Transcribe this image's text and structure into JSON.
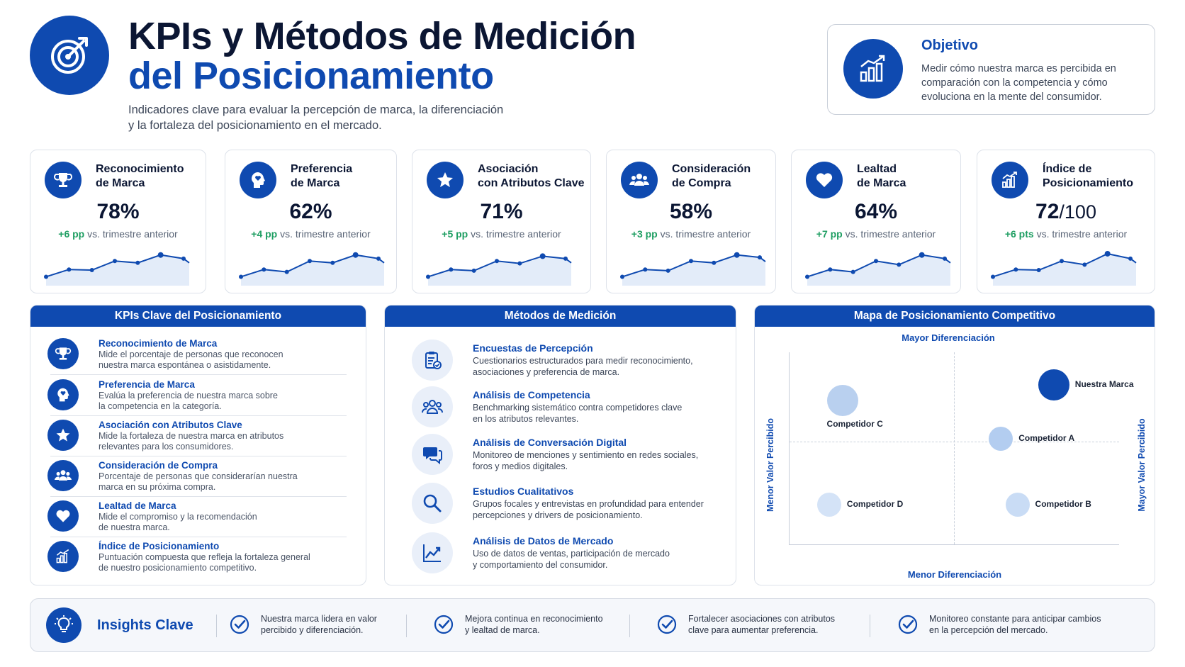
{
  "header": {
    "title_line1": "KPIs y Métodos de Medición",
    "title_line2": "del Posicionamiento",
    "subtitle_line1": "Indicadores clave para evaluar la percepción de marca, la diferenciación",
    "subtitle_line2": "y la fortaleza del posicionamiento en el mercado.",
    "icon": "target-icon"
  },
  "objective": {
    "title": "Objetivo",
    "text": "Medir cómo nuestra marca es percibida en comparación con la competencia y cómo evoluciona en la mente del consumidor.",
    "icon": "bar-growth-icon"
  },
  "kpi_cards": [
    {
      "title1": "Reconocimiento",
      "title2": "de Marca",
      "value": "78%",
      "suffix": "",
      "delta_pos": "+6 pp",
      "delta_rest": " vs. trimestre anterior",
      "icon": "trophy-icon",
      "trend": [
        40,
        52,
        51,
        66,
        63,
        76,
        70
      ]
    },
    {
      "title1": "Preferencia",
      "title2": "de Marca",
      "value": "62%",
      "suffix": "",
      "delta_pos": "+4 pp",
      "delta_rest": " vs. trimestre anterior",
      "icon": "head-heart-icon",
      "trend": [
        40,
        52,
        48,
        66,
        63,
        76,
        70
      ]
    },
    {
      "title1": "Asociación",
      "title2": "con Atributos Clave",
      "value": "71%",
      "suffix": "",
      "delta_pos": "+5 pp",
      "delta_rest": " vs. trimestre anterior",
      "icon": "star-icon",
      "trend": [
        40,
        52,
        50,
        66,
        62,
        74,
        70
      ]
    },
    {
      "title1": "Consideración",
      "title2": "de Compra",
      "value": "58%",
      "suffix": "",
      "delta_pos": "+3 pp",
      "delta_rest": " vs. trimestre anterior",
      "icon": "people-icon",
      "trend": [
        40,
        52,
        50,
        66,
        63,
        76,
        72
      ]
    },
    {
      "title1": "Lealtad",
      "title2": "de Marca",
      "value": "64%",
      "suffix": "",
      "delta_pos": "+7 pp",
      "delta_rest": " vs. trimestre anterior",
      "icon": "heart-icon",
      "trend": [
        40,
        52,
        48,
        66,
        60,
        76,
        70
      ]
    },
    {
      "title1": "Índice de",
      "title2": "Posicionamiento",
      "value": "72",
      "suffix": "/100",
      "delta_pos": "+6 pts",
      "delta_rest": " vs. trimestre anterior",
      "icon": "chart-growth-icon",
      "trend": [
        40,
        52,
        51,
        66,
        60,
        78,
        70
      ]
    }
  ],
  "kpis_panel": {
    "title": "KPIs Clave del Posicionamiento",
    "items": [
      {
        "title": "Reconocimiento de Marca",
        "desc1": "Mide el porcentaje de personas que reconocen",
        "desc2": "nuestra marca espontánea o asistidamente.",
        "icon": "trophy-icon"
      },
      {
        "title": "Preferencia de Marca",
        "desc1": "Evalúa la preferencia de nuestra marca sobre",
        "desc2": "la competencia en la categoría.",
        "icon": "head-heart-icon"
      },
      {
        "title": "Asociación con Atributos Clave",
        "desc1": "Mide la fortaleza de nuestra marca en atributos",
        "desc2": "relevantes para los consumidores.",
        "icon": "star-icon"
      },
      {
        "title": "Consideración de Compra",
        "desc1": "Porcentaje de personas que considerarían nuestra",
        "desc2": "marca en su próxima compra.",
        "icon": "people-icon"
      },
      {
        "title": "Lealtad de Marca",
        "desc1": "Mide el compromiso y la recomendación",
        "desc2": "de nuestra marca.",
        "icon": "heart-icon"
      },
      {
        "title": "Índice de Posicionamiento",
        "desc1": "Puntuación compuesta que refleja la fortaleza general",
        "desc2": "de nuestro posicionamiento competitivo.",
        "icon": "chart-growth-icon"
      }
    ]
  },
  "methods_panel": {
    "title": "Métodos de Medición",
    "items": [
      {
        "title": "Encuestas de Percepción",
        "desc1": "Cuestionarios estructurados para medir reconocimiento,",
        "desc2": "asociaciones y preferencia de marca.",
        "icon": "clipboard-icon"
      },
      {
        "title": "Análisis de Competencia",
        "desc1": "Benchmarking sistemático contra competidores clave",
        "desc2": "en los atributos relevantes.",
        "icon": "group-icon"
      },
      {
        "title": "Análisis de Conversación Digital",
        "desc1": "Monitoreo de menciones y sentimiento en redes sociales,",
        "desc2": "foros y medios digitales.",
        "icon": "chat-icon"
      },
      {
        "title": "Estudios Cualitativos",
        "desc1": "Grupos focales y entrevistas en profundidad para entender",
        "desc2": "percepciones y drivers de posicionamiento.",
        "icon": "magnifier-icon"
      },
      {
        "title": "Análisis de Datos de Mercado",
        "desc1": "Uso de datos de ventas, participación de mercado",
        "desc2": "y comportamiento del consumidor.",
        "icon": "line-chart-icon"
      }
    ]
  },
  "map_panel": {
    "title": "Mapa de Posicionamiento Competitivo",
    "label_top": "Mayor Diferenciación",
    "label_bottom": "Menor Diferenciación",
    "label_left": "Menor Valor Percibido",
    "label_right": "Mayor Valor Percibido",
    "brands": [
      {
        "name": "Nuestra Marca",
        "value": 0.8,
        "differentiation": 0.83,
        "color": "#0f4ab0",
        "size": "large"
      },
      {
        "name": "Competidor C",
        "value": 0.16,
        "differentiation": 0.75,
        "color": "#b9d0ef",
        "size": "large"
      },
      {
        "name": "Competidor A",
        "value": 0.64,
        "differentiation": 0.55,
        "color": "#b3cdf0",
        "size": "medium"
      },
      {
        "name": "Competidor D",
        "value": 0.12,
        "differentiation": 0.21,
        "color": "#d4e3f7",
        "size": "medium"
      },
      {
        "name": "Competidor B",
        "value": 0.69,
        "differentiation": 0.21,
        "color": "#c9dcf5",
        "size": "medium"
      }
    ]
  },
  "insights": {
    "title": "Insights Clave",
    "icon": "lightbulb-icon",
    "items": [
      {
        "line1": "Nuestra marca lidera en valor",
        "line2": "percibido y diferenciación."
      },
      {
        "line1": "Mejora continua en reconocimiento",
        "line2": "y lealtad de marca."
      },
      {
        "line1": "Fortalecer asociaciones con atributos",
        "line2": "clave para aumentar preferencia."
      },
      {
        "line1": "Monitoreo constante para anticipar cambios",
        "line2": "en la percepción del mercado."
      }
    ]
  },
  "colors": {
    "primary": "#0f4ab0",
    "positive": "#1e9e62",
    "text_dark": "#0b1633"
  }
}
